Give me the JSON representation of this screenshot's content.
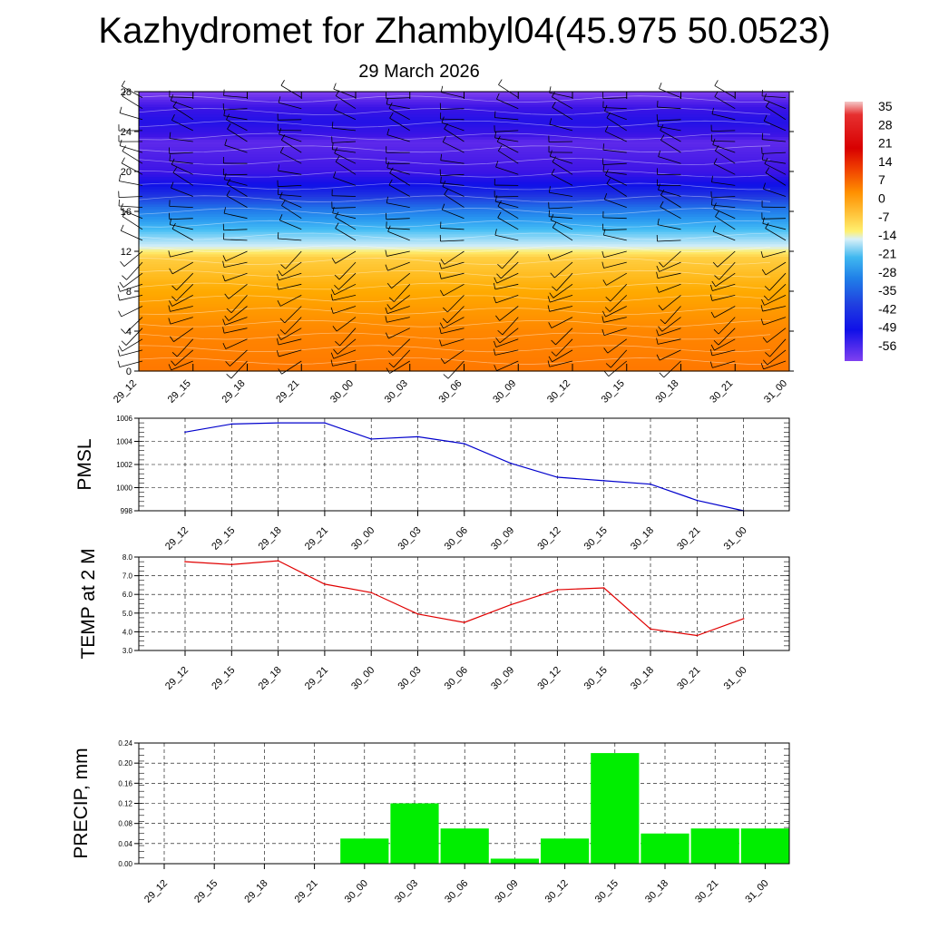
{
  "title": "Kazhydromet for Zhambyl04(45.975 50.0523)",
  "subtitle": "29 March 2026",
  "colors": {
    "pmsl_line": "#0000cc",
    "temp_line": "#e00000",
    "precip_bar": "#00ee00",
    "grid": "#000000"
  },
  "chart_data": [
    {
      "type": "heatmap",
      "name": "cross-section",
      "ylabel": "",
      "ylim": [
        0,
        28
      ],
      "yticks": [
        0,
        4,
        8,
        12,
        16,
        20,
        24,
        28
      ],
      "categories": [
        "29_12",
        "29_15",
        "29_18",
        "29_21",
        "30_00",
        "30_03",
        "30_06",
        "30_09",
        "30_12",
        "30_15",
        "30_18",
        "30_21",
        "31_00"
      ],
      "colorbar_labels": [
        "35",
        "28",
        "21",
        "14",
        "7",
        "0",
        "-7",
        "-14",
        "-21",
        "-28",
        "-35",
        "-42",
        "-49",
        "-56"
      ],
      "profile": [
        {
          "level": 0,
          "value": 14
        },
        {
          "level": 4,
          "value": 12
        },
        {
          "level": 8,
          "value": 7
        },
        {
          "level": 11.5,
          "value": 1
        },
        {
          "level": 12.5,
          "value": -14
        },
        {
          "level": 14,
          "value": -20
        },
        {
          "level": 16,
          "value": -32
        },
        {
          "level": 18,
          "value": -45
        },
        {
          "level": 20,
          "value": -56
        },
        {
          "level": 23,
          "value": -58
        },
        {
          "level": 25,
          "value": -52
        },
        {
          "level": 28,
          "value": -60
        }
      ]
    },
    {
      "type": "line",
      "name": "pmsl",
      "ylabel": "PMSL",
      "ylim": [
        998,
        1006
      ],
      "yticks": [
        998,
        1000,
        1002,
        1004,
        1006
      ],
      "categories": [
        "29_12",
        "29_15",
        "29_18",
        "29_21",
        "30_00",
        "30_03",
        "30_06",
        "30_09",
        "30_12",
        "30_15",
        "30_18",
        "30_21",
        "31_00"
      ],
      "values": [
        1004.8,
        1005.5,
        1005.6,
        1005.6,
        1004.2,
        1004.4,
        1003.8,
        1002.1,
        1000.9,
        1000.6,
        1000.3,
        998.9,
        998.0
      ]
    },
    {
      "type": "line",
      "name": "temp2m",
      "ylabel": "TEMP at 2 M",
      "ylim": [
        3.0,
        8.0
      ],
      "yticks": [
        "3.0",
        "4.0",
        "5.0",
        "6.0",
        "7.0",
        "8.0"
      ],
      "categories": [
        "29_12",
        "29_15",
        "29_18",
        "29_21",
        "30_00",
        "30_03",
        "30_06",
        "30_09",
        "30_12",
        "30_15",
        "30_18",
        "30_21",
        "31_00"
      ],
      "values": [
        7.75,
        7.6,
        7.8,
        6.55,
        6.1,
        4.95,
        4.5,
        5.45,
        6.25,
        6.35,
        4.15,
        3.8,
        4.7
      ]
    },
    {
      "type": "bar",
      "name": "precip",
      "ylabel": "PRECIP, mm",
      "ylim": [
        0,
        0.24
      ],
      "yticks": [
        "0.00",
        "0.04",
        "0.08",
        "0.12",
        "0.16",
        "0.20",
        "0.24"
      ],
      "categories": [
        "29_12",
        "29_15",
        "29_18",
        "29_21",
        "30_00",
        "30_03",
        "30_06",
        "30_09",
        "30_12",
        "30_15",
        "30_18",
        "30_21",
        "31_00"
      ],
      "values": [
        0,
        0,
        0,
        0,
        0.05,
        0.12,
        0.07,
        0.01,
        0.05,
        0.22,
        0.06,
        0.07,
        0.07
      ]
    }
  ]
}
